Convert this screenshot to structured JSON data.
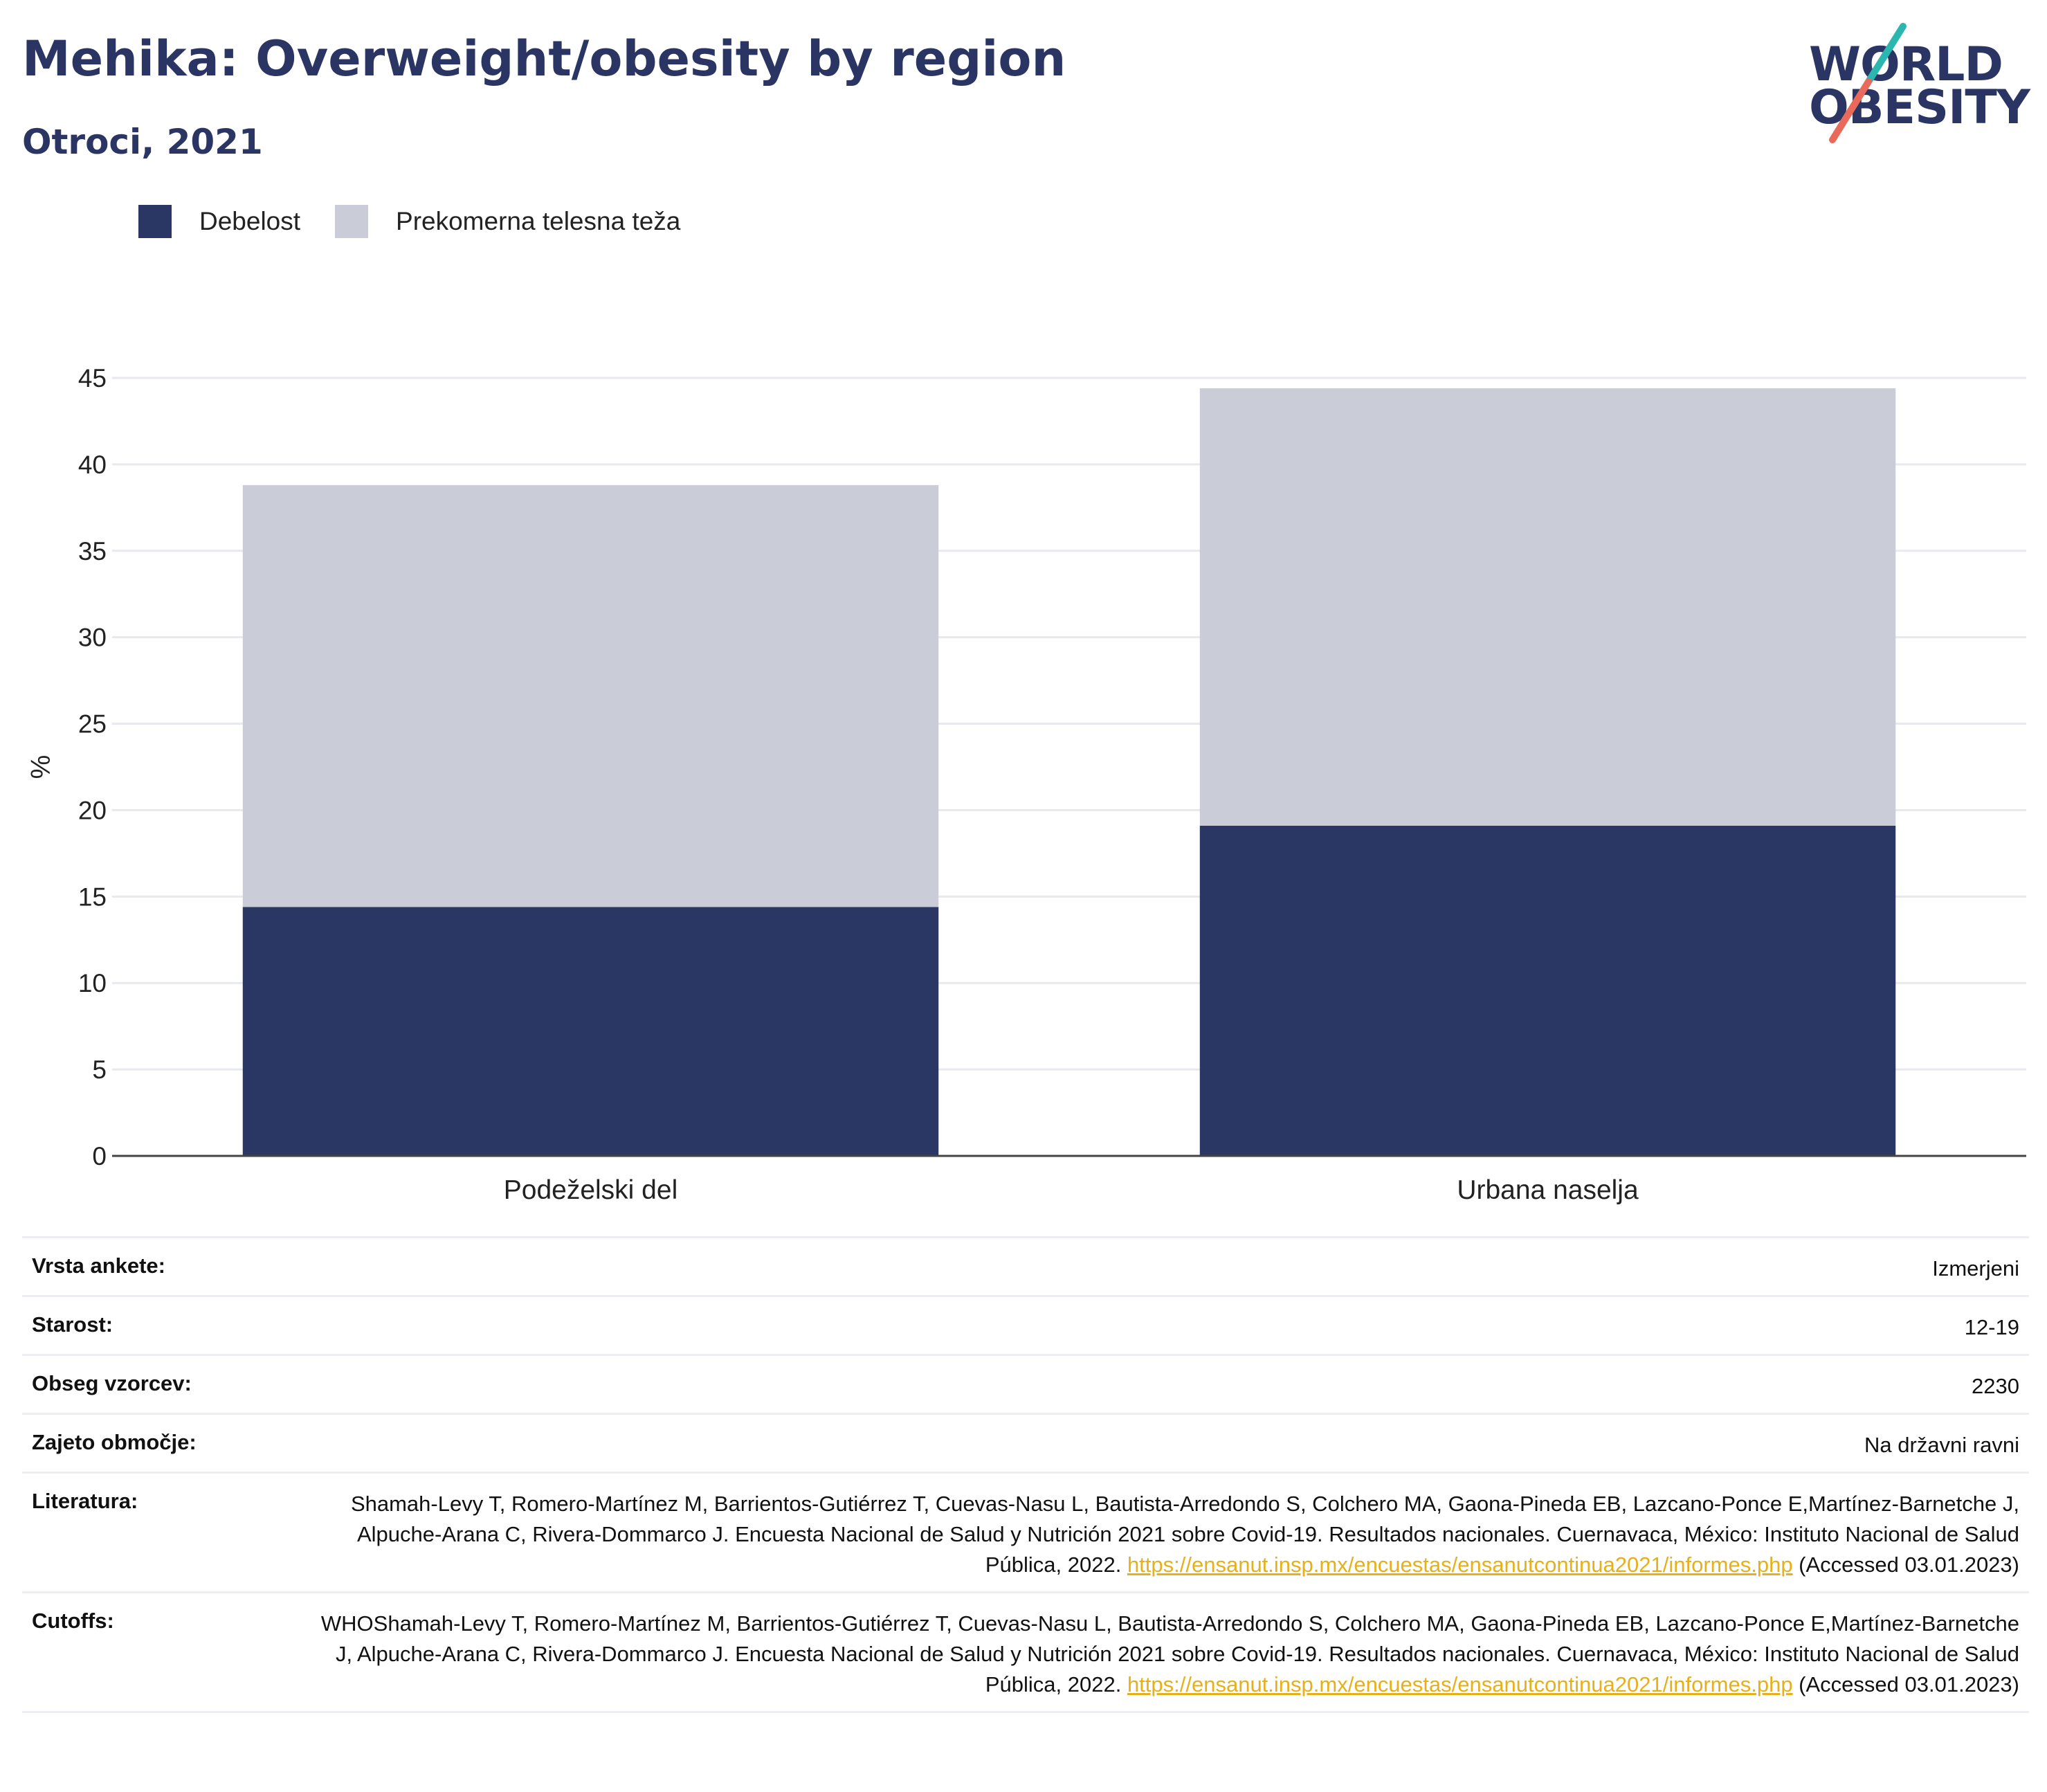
{
  "title": "Mehika: Overweight/obesity by region",
  "subtitle": "Otroci, 2021",
  "logo": {
    "line1": "WORLD",
    "line2": "OBESITY"
  },
  "legend": [
    {
      "label": "Debelost",
      "color": "#2a3663"
    },
    {
      "label": "Prekomerna telesna teža",
      "color": "#cacdd8"
    }
  ],
  "chart_data": {
    "type": "bar",
    "stacked": true,
    "categories": [
      "Podeželski del",
      "Urbana naselja"
    ],
    "series": [
      {
        "name": "Debelost",
        "values": [
          14.4,
          19.1
        ],
        "color": "#2a3663"
      },
      {
        "name": "Prekomerna telesna teža",
        "values": [
          24.4,
          25.3
        ],
        "color": "#cacdd8"
      }
    ],
    "ylabel": "%",
    "ylim": [
      0,
      45
    ],
    "yticks": [
      0,
      5,
      10,
      15,
      20,
      25,
      30,
      35,
      40,
      45
    ],
    "grid": true,
    "legend_position": "top-left"
  },
  "info": [
    {
      "key": "Vrsta ankete:",
      "value": "Izmerjeni"
    },
    {
      "key": "Starost:",
      "value": "12-19"
    },
    {
      "key": "Obseg vzorcev:",
      "value": "2230"
    },
    {
      "key": "Zajeto območje:",
      "value": "Na državni ravni"
    },
    {
      "key": "Literatura:",
      "value": "Shamah-Levy T, Romero-Martínez M, Barrientos-Gutiérrez T, Cuevas-Nasu L, Bautista-Arredondo S, Colchero MA, Gaona-Pineda EB, Lazcano-Ponce E,Martínez-Barnetche J, Alpuche-Arana C, Rivera-Dommarco J. Encuesta Nacional de Salud y Nutrición 2021 sobre Covid-19. Resultados nacionales. Cuernavaca, México: Instituto Nacional de Salud Pública, 2022.",
      "link": "https://ensanut.insp.mx/encuestas/ensanutcontinua2021/informes.php",
      "suffix": " (Accessed 03.01.2023)"
    },
    {
      "key": "Cutoffs:",
      "value": "WHOShamah-Levy T, Romero-Martínez M, Barrientos-Gutiérrez T, Cuevas-Nasu L, Bautista-Arredondo S, Colchero MA, Gaona-Pineda EB, Lazcano-Ponce E,Martínez-Barnetche J, Alpuche-Arana C, Rivera-Dommarco J. Encuesta Nacional de Salud y Nutrición 2021 sobre Covid-19. Resultados nacionales. Cuernavaca, México: Instituto Nacional de Salud Pública, 2022.",
      "link": "https://ensanut.insp.mx/encuestas/ensanutcontinua2021/informes.php",
      "suffix": " (Accessed 03.01.2023)"
    }
  ]
}
